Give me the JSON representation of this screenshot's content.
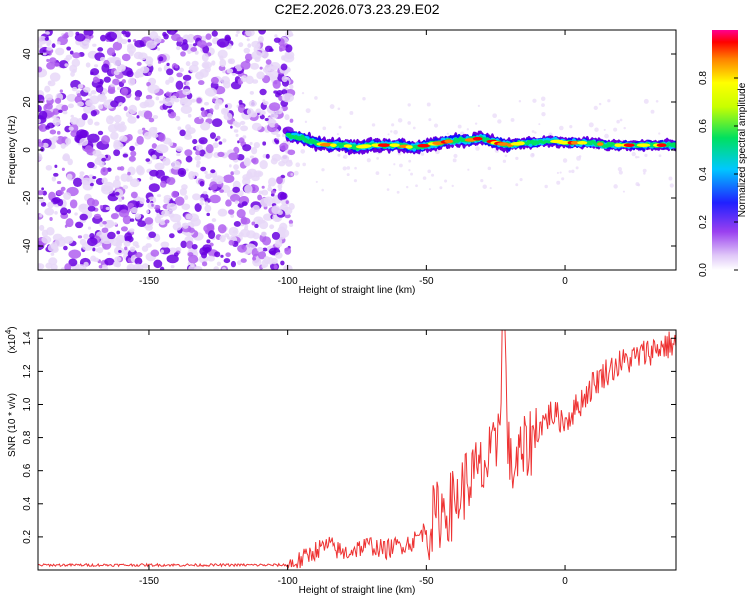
{
  "title": "C2E2.2026.073.23.29.E02",
  "colormap": [
    "#ffffff",
    "#e8d8f8",
    "#b060f0",
    "#6a00e0",
    "#1010ff",
    "#00c8ff",
    "#00e060",
    "#ffff00",
    "#ff8000",
    "#ff0000",
    "#ff00a0"
  ],
  "line_color": "#ee3333",
  "chart_data": [
    {
      "type": "heatmap",
      "xlabel": "Height of straight line (km)",
      "ylabel": "Frequency (Hz)",
      "xlim": [
        -190,
        40
      ],
      "ylim": [
        -50,
        50
      ],
      "xticks": [
        -150,
        -100,
        -50,
        0
      ],
      "yticks": [
        -40,
        -20,
        0,
        20,
        40
      ],
      "colorbar": {
        "label": "Normalized spectral amplitude",
        "range": [
          0,
          1
        ],
        "ticks": [
          "0.0",
          "0.2",
          "0.4",
          "0.6",
          "0.8"
        ]
      },
      "features": {
        "noise_region_x": [
          -190,
          -100
        ],
        "signal_band_x": [
          -100,
          40
        ],
        "signal_center_hz": [
          [
            -100,
            6
          ],
          [
            -95,
            5
          ],
          [
            -90,
            3
          ],
          [
            -85,
            2
          ],
          [
            -80,
            2
          ],
          [
            -75,
            1
          ],
          [
            -70,
            2
          ],
          [
            -65,
            2
          ],
          [
            -60,
            2
          ],
          [
            -55,
            1
          ],
          [
            -50,
            2
          ],
          [
            -45,
            3
          ],
          [
            -40,
            4
          ],
          [
            -35,
            4
          ],
          [
            -30,
            5
          ],
          [
            -25,
            3
          ],
          [
            -20,
            2
          ],
          [
            -15,
            3
          ],
          [
            -10,
            3
          ],
          [
            -5,
            4
          ],
          [
            0,
            3
          ],
          [
            5,
            3
          ],
          [
            10,
            3
          ],
          [
            15,
            2
          ],
          [
            20,
            2
          ],
          [
            25,
            2
          ],
          [
            30,
            2
          ],
          [
            35,
            2
          ],
          [
            40,
            2
          ]
        ]
      }
    },
    {
      "type": "line",
      "xlabel": "Height of straight line (km)",
      "ylabel": "SNR (10 * v/v)",
      "yscale_label": "(x10",
      "yscale_exp": "4",
      "yscale_close": ")",
      "xlim": [
        -190,
        40
      ],
      "ylim": [
        0,
        1.45
      ],
      "xticks": [
        -150,
        -100,
        -50,
        0
      ],
      "yticks": [
        "0.2",
        "0.4",
        "0.6",
        "0.8",
        "1.0",
        "1.2",
        "1.4"
      ],
      "series": [
        {
          "x": [
            -190,
            -170,
            -150,
            -130,
            -110,
            -100,
            -95,
            -90,
            -85,
            -80,
            -75,
            -70,
            -65,
            -60,
            -55,
            -50,
            -45,
            -40,
            -35,
            -30,
            -25,
            -22,
            -20,
            -15,
            -10,
            -5,
            0,
            5,
            10,
            15,
            20,
            25,
            30,
            35,
            40
          ],
          "values": [
            0.03,
            0.03,
            0.03,
            0.03,
            0.03,
            0.03,
            0.06,
            0.12,
            0.15,
            0.1,
            0.13,
            0.15,
            0.12,
            0.15,
            0.17,
            0.25,
            0.35,
            0.4,
            0.55,
            0.6,
            0.7,
            1.4,
            0.6,
            0.7,
            0.85,
            0.95,
            0.9,
            1.0,
            1.12,
            1.2,
            1.25,
            1.28,
            1.32,
            1.35,
            1.37
          ]
        }
      ]
    }
  ]
}
